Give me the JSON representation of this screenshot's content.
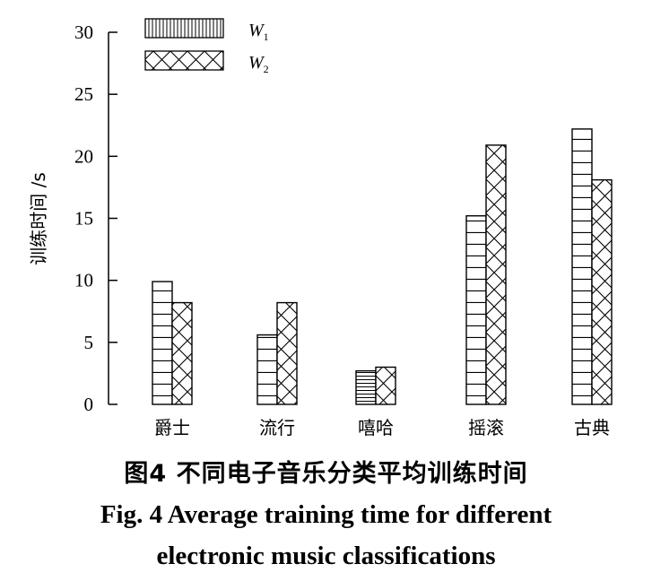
{
  "chart_data": {
    "type": "bar",
    "title": "",
    "xlabel": "",
    "ylabel": "训练时间 /s",
    "ylim": [
      0,
      30
    ],
    "yticks": [
      0,
      5,
      10,
      15,
      20,
      25,
      30
    ],
    "categories": [
      "爵士",
      "流行",
      "嘻哈",
      "摇滚",
      "古典"
    ],
    "series": [
      {
        "name": "W1",
        "values": [
          9.9,
          5.6,
          2.7,
          15.2,
          22.2
        ]
      },
      {
        "name": "W2",
        "values": [
          8.2,
          8.2,
          3.0,
          20.9,
          18.1
        ]
      }
    ],
    "grid": false,
    "legend_position": "top-left"
  },
  "legend": {
    "items": [
      {
        "main": "W",
        "sub": "1"
      },
      {
        "main": "W",
        "sub": "2"
      }
    ]
  },
  "caption": {
    "zh": "图4  不同电子音乐分类平均训练时间",
    "en_line1": "Fig. 4  Average training time for different",
    "en_line2": "electronic music classifications"
  }
}
